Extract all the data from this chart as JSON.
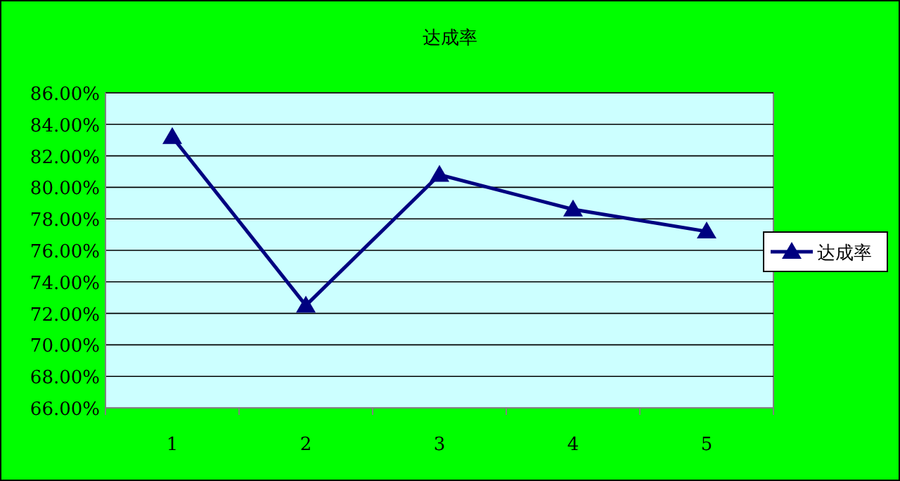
{
  "chart_data": {
    "type": "line",
    "title": "达成率",
    "categories": [
      "1",
      "2",
      "3",
      "4",
      "5"
    ],
    "series": [
      {
        "name": "达成率",
        "color": "#000080",
        "values": [
          83.2,
          72.5,
          80.8,
          78.6,
          77.2
        ]
      }
    ],
    "ylim": [
      66,
      86
    ],
    "yticks": [
      {
        "value": 66,
        "label": "66.00%"
      },
      {
        "value": 68,
        "label": "68.00%"
      },
      {
        "value": 70,
        "label": "70.00%"
      },
      {
        "value": 72,
        "label": "72.00%"
      },
      {
        "value": 74,
        "label": "74.00%"
      },
      {
        "value": 76,
        "label": "76.00%"
      },
      {
        "value": 78,
        "label": "78.00%"
      },
      {
        "value": 80,
        "label": "80.00%"
      },
      {
        "value": 82,
        "label": "82.00%"
      },
      {
        "value": 84,
        "label": "84.00%"
      },
      {
        "value": 86,
        "label": "86.00%"
      }
    ],
    "grid": "y",
    "legend": "right",
    "marker": "triangle",
    "line_style": "solid"
  }
}
